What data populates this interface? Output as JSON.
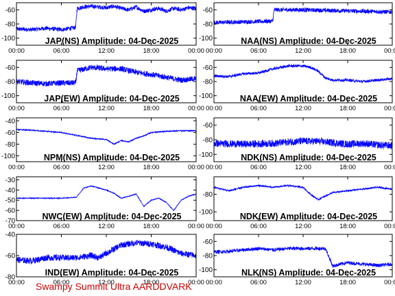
{
  "footer_label": "Swampy Summit Ultra AARDDVARK",
  "colors": {
    "trace": "#0000ff",
    "axis": "#000000",
    "footer": "#d00000"
  },
  "chart_data": [
    {
      "type": "line",
      "title": "JAP(NS) Amplitude: 04-Dec-2025",
      "x_ticks": [
        "00:00",
        "06:00",
        "12:00",
        "18:00",
        "00:00"
      ],
      "y_ticks": [
        "-60",
        "-80",
        "-100"
      ],
      "ylim": [
        -110,
        -50
      ],
      "xlim_hours": [
        0,
        24
      ],
      "series": [
        {
          "x": [
            0,
            2,
            4,
            6,
            7.9,
            8.1,
            9,
            10,
            11,
            12,
            13,
            14,
            15,
            16,
            17,
            18,
            19,
            20,
            21,
            22,
            23,
            24
          ],
          "y": [
            -87,
            -88,
            -86,
            -88,
            -85,
            -58,
            -56,
            -55,
            -56,
            -57,
            -55,
            -58,
            -60,
            -56,
            -62,
            -60,
            -58,
            -62,
            -58,
            -60,
            -57,
            -58
          ],
          "noise": 6
        }
      ]
    },
    {
      "type": "line",
      "title": "NAA(NS) Amplitude: 04-Dec-2025",
      "x_ticks": [
        "00:00",
        "06:00",
        "12:00",
        "18:00",
        "00:00"
      ],
      "y_ticks": [
        "-60",
        "-80",
        "-100"
      ],
      "ylim": [
        -110,
        -50
      ],
      "xlim_hours": [
        0,
        24
      ],
      "series": [
        {
          "x": [
            0,
            4,
            7.9,
            8.1,
            12,
            16,
            20,
            24
          ],
          "y": [
            -78,
            -77,
            -76,
            -60,
            -60,
            -61,
            -62,
            -63
          ],
          "noise": 6
        }
      ]
    },
    {
      "type": "line",
      "title": "JAP(EW) Amplitude: 04-Dec-2025",
      "x_ticks": [
        "00:00",
        "06:00",
        "12:00",
        "18:00",
        "00:00"
      ],
      "y_ticks": [
        "-60",
        "-80",
        "-100"
      ],
      "ylim": [
        -110,
        -50
      ],
      "xlim_hours": [
        0,
        24
      ],
      "series": [
        {
          "x": [
            0,
            2,
            4,
            6,
            7.9,
            8.1,
            10,
            12,
            14,
            16,
            18,
            20,
            22,
            24
          ],
          "y": [
            -80,
            -82,
            -83,
            -82,
            -82,
            -65,
            -60,
            -62,
            -62,
            -67,
            -70,
            -74,
            -78,
            -76
          ],
          "noise": 8
        }
      ]
    },
    {
      "type": "line",
      "title": "NAA(EW) Amplitude: 04-Dec-2025",
      "x_ticks": [
        "00:00",
        "06:00",
        "12:00",
        "18:00",
        "00:00"
      ],
      "y_ticks": [
        "-60",
        "-80",
        "-100"
      ],
      "ylim": [
        -110,
        -50
      ],
      "xlim_hours": [
        0,
        24
      ],
      "series": [
        {
          "x": [
            0,
            2,
            4,
            6,
            8,
            10,
            12,
            13,
            14,
            15,
            16,
            18,
            20,
            22,
            24
          ],
          "y": [
            -72,
            -73,
            -69,
            -68,
            -62,
            -58,
            -58,
            -60,
            -65,
            -75,
            -78,
            -78,
            -80,
            -78,
            -76
          ],
          "noise": 4
        }
      ]
    },
    {
      "type": "line",
      "title": "NPM(NS) Amplitude: 04-Dec-2025",
      "x_ticks": [
        "00:00",
        "06:00",
        "12:00",
        "18:00",
        "00:00"
      ],
      "y_ticks": [
        "-40",
        "-60",
        "-80",
        "-100"
      ],
      "ylim": [
        -110,
        -35
      ],
      "xlim_hours": [
        0,
        24
      ],
      "series": [
        {
          "x": [
            0,
            2,
            4,
            6,
            8,
            10,
            12,
            13,
            14,
            15,
            16,
            17,
            18,
            20,
            22,
            24
          ],
          "y": [
            -55,
            -56,
            -58,
            -60,
            -65,
            -70,
            -72,
            -80,
            -74,
            -76,
            -70,
            -66,
            -60,
            -58,
            -57,
            -57
          ],
          "noise": 2
        }
      ]
    },
    {
      "type": "line",
      "title": "NDK(NS) Amplitude: 04-Dec-2025",
      "x_ticks": [
        "00:00",
        "06:00",
        "12:00",
        "18:00",
        "00:00"
      ],
      "y_ticks": [
        "-60",
        "-80",
        "-100"
      ],
      "ylim": [
        -110,
        -50
      ],
      "xlim_hours": [
        0,
        24
      ],
      "series": [
        {
          "x": [
            0,
            4,
            8,
            10,
            12,
            14,
            16,
            18,
            20,
            22,
            24
          ],
          "y": [
            -85,
            -86,
            -85,
            -83,
            -82,
            -82,
            -84,
            -86,
            -85,
            -87,
            -88
          ],
          "noise": 10
        }
      ]
    },
    {
      "type": "line",
      "title": "NWC(EW) Amplitude: 04-Dec-2025",
      "x_ticks": [
        "00:00",
        "06:00",
        "12:00",
        "18:00",
        "00:00"
      ],
      "y_ticks": [
        "-30",
        "-40",
        "-50",
        "-60",
        "-70"
      ],
      "ylim": [
        -70,
        -27
      ],
      "xlim_hours": [
        0,
        24
      ],
      "series": [
        {
          "x": [
            0,
            2,
            4,
            6,
            8,
            9,
            10,
            11,
            12,
            13,
            14,
            15,
            16,
            17,
            18,
            19,
            20,
            21,
            22,
            23,
            24
          ],
          "y": [
            -48,
            -48,
            -48,
            -48,
            -47,
            -38,
            -36,
            -38,
            -40,
            -43,
            -48,
            -46,
            -44,
            -56,
            -50,
            -48,
            -52,
            -60,
            -50,
            -46,
            -44
          ],
          "noise": 0.8
        }
      ]
    },
    {
      "type": "line",
      "title": "NDK(EW) Amplitude: 04-Dec-2025",
      "x_ticks": [
        "00:00",
        "06:00",
        "12:00",
        "18:00",
        "00:00"
      ],
      "y_ticks": [
        "-80",
        "-100"
      ],
      "ylim": [
        -110,
        -60
      ],
      "xlim_hours": [
        0,
        24
      ],
      "series": [
        {
          "x": [
            0,
            2,
            4,
            6,
            8,
            10,
            12,
            13,
            14,
            15,
            16,
            18,
            20,
            22,
            24
          ],
          "y": [
            -72,
            -76,
            -72,
            -70,
            -72,
            -70,
            -72,
            -80,
            -86,
            -82,
            -78,
            -76,
            -74,
            -72,
            -74
          ],
          "noise": 2
        }
      ]
    },
    {
      "type": "line",
      "title": "IND(EW) Amplitude: 04-Dec-2025",
      "x_ticks": [
        "00:00",
        "06:00",
        "12:00",
        "18:00",
        "00:00"
      ],
      "y_ticks": [
        "-40",
        "-60",
        "-80"
      ],
      "ylim": [
        -80,
        -40
      ],
      "xlim_hours": [
        0,
        24
      ],
      "series": [
        {
          "x": [
            0,
            2,
            4,
            6,
            8,
            10,
            11,
            12,
            13,
            14,
            16,
            18,
            20,
            22,
            24
          ],
          "y": [
            -64,
            -65,
            -62,
            -62,
            -62,
            -60,
            -62,
            -58,
            -54,
            -50,
            -48,
            -49,
            -52,
            -58,
            -60
          ],
          "noise": 6
        }
      ]
    },
    {
      "type": "line",
      "title": "NLK(NS) Amplitude: 04-Dec-2025",
      "x_ticks": [
        "00:00",
        "06:00",
        "12:00",
        "18:00",
        "00:00"
      ],
      "y_ticks": [
        "-60",
        "-80",
        "-100"
      ],
      "ylim": [
        -110,
        -50
      ],
      "xlim_hours": [
        0,
        24
      ],
      "series": [
        {
          "x": [
            0,
            2,
            4,
            6,
            8,
            10,
            12,
            14,
            15,
            16,
            17,
            18,
            20,
            22,
            24
          ],
          "y": [
            -75,
            -74,
            -72,
            -70,
            -72,
            -70,
            -70,
            -70,
            -70,
            -95,
            -92,
            -90,
            -92,
            -94,
            -92
          ],
          "noise": 5
        }
      ]
    }
  ]
}
